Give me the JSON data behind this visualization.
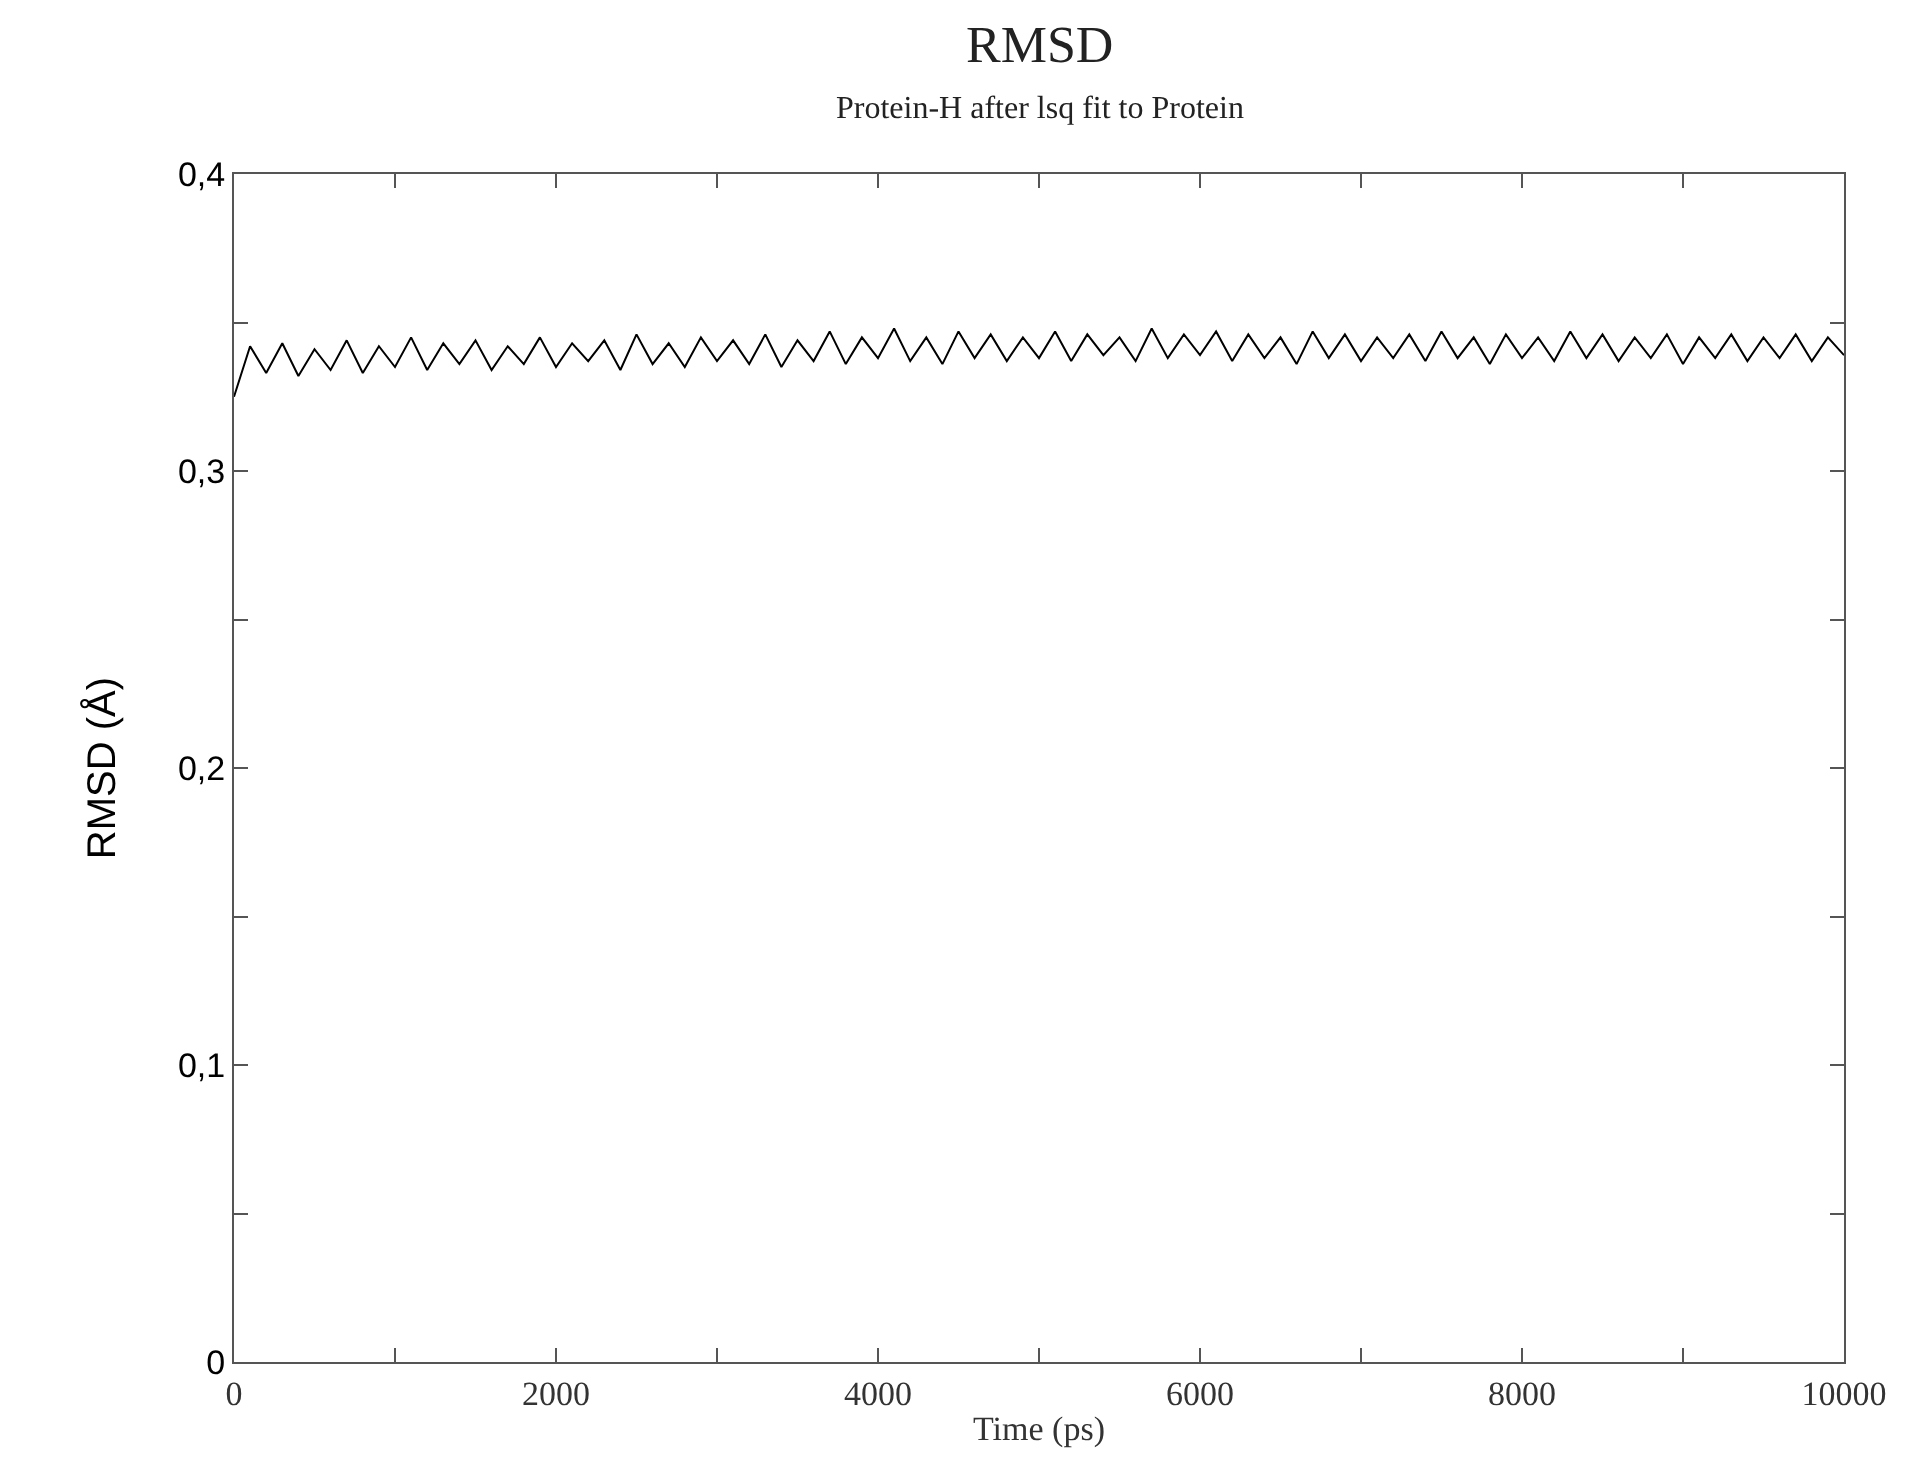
{
  "chart_data": {
    "type": "line",
    "title": "RMSD",
    "subtitle": "Protein-H after lsq fit to Protein",
    "xlabel": "Time (ps)",
    "ylabel": "RMSD (Å)",
    "x": [
      0,
      100,
      200,
      300,
      400,
      500,
      600,
      700,
      800,
      900,
      1000,
      1100,
      1200,
      1300,
      1400,
      1500,
      1600,
      1700,
      1800,
      1900,
      2000,
      2100,
      2200,
      2300,
      2400,
      2500,
      2600,
      2700,
      2800,
      2900,
      3000,
      3100,
      3200,
      3300,
      3400,
      3500,
      3600,
      3700,
      3800,
      3900,
      4000,
      4100,
      4200,
      4300,
      4400,
      4500,
      4600,
      4700,
      4800,
      4900,
      5000,
      5100,
      5200,
      5300,
      5400,
      5500,
      5600,
      5700,
      5800,
      5900,
      6000,
      6100,
      6200,
      6300,
      6400,
      6500,
      6600,
      6700,
      6800,
      6900,
      7000,
      7100,
      7200,
      7300,
      7400,
      7500,
      7600,
      7700,
      7800,
      7900,
      8000,
      8100,
      8200,
      8300,
      8400,
      8500,
      8600,
      8700,
      8800,
      8900,
      9000,
      9100,
      9200,
      9300,
      9400,
      9500,
      9600,
      9700,
      9800,
      9900,
      10000
    ],
    "series": [
      {
        "color": "#000000",
        "values": [
          0.325,
          0.342,
          0.333,
          0.343,
          0.332,
          0.341,
          0.334,
          0.344,
          0.333,
          0.342,
          0.335,
          0.345,
          0.334,
          0.343,
          0.336,
          0.344,
          0.334,
          0.342,
          0.336,
          0.345,
          0.335,
          0.343,
          0.337,
          0.344,
          0.334,
          0.346,
          0.336,
          0.343,
          0.335,
          0.345,
          0.337,
          0.344,
          0.336,
          0.346,
          0.335,
          0.344,
          0.337,
          0.347,
          0.336,
          0.345,
          0.338,
          0.348,
          0.337,
          0.345,
          0.336,
          0.347,
          0.338,
          0.346,
          0.337,
          0.345,
          0.338,
          0.347,
          0.337,
          0.346,
          0.339,
          0.345,
          0.337,
          0.348,
          0.338,
          0.346,
          0.339,
          0.347,
          0.337,
          0.346,
          0.338,
          0.345,
          0.336,
          0.347,
          0.338,
          0.346,
          0.337,
          0.345,
          0.338,
          0.346,
          0.337,
          0.347,
          0.338,
          0.345,
          0.336,
          0.346,
          0.338,
          0.345,
          0.337,
          0.347,
          0.338,
          0.346,
          0.337,
          0.345,
          0.338,
          0.346,
          0.336,
          0.345,
          0.338,
          0.346,
          0.337,
          0.345,
          0.338,
          0.346,
          0.337,
          0.345,
          0.339
        ]
      }
    ],
    "xlim": [
      0,
      10000
    ],
    "ylim": [
      0,
      0.4
    ],
    "xticks": [
      0,
      {
        "value": 1000,
        "label": null
      },
      2000,
      {
        "value": 3000,
        "label": null
      },
      4000,
      {
        "value": 5000,
        "label": null
      },
      6000,
      {
        "value": 7000,
        "label": null
      },
      8000,
      {
        "value": 9000,
        "label": null
      },
      10000
    ],
    "yticks": [
      0,
      {
        "value": 0.05,
        "label": null
      },
      {
        "value": 0.1,
        "label": "0,1"
      },
      {
        "value": 0.15,
        "label": null
      },
      {
        "value": 0.2,
        "label": "0,2"
      },
      {
        "value": 0.25,
        "label": null
      },
      {
        "value": 0.3,
        "label": "0,3"
      },
      {
        "value": 0.35,
        "label": null
      },
      {
        "value": 0.4,
        "label": "0,4"
      }
    ],
    "marker": "none",
    "line_style": "solid"
  }
}
